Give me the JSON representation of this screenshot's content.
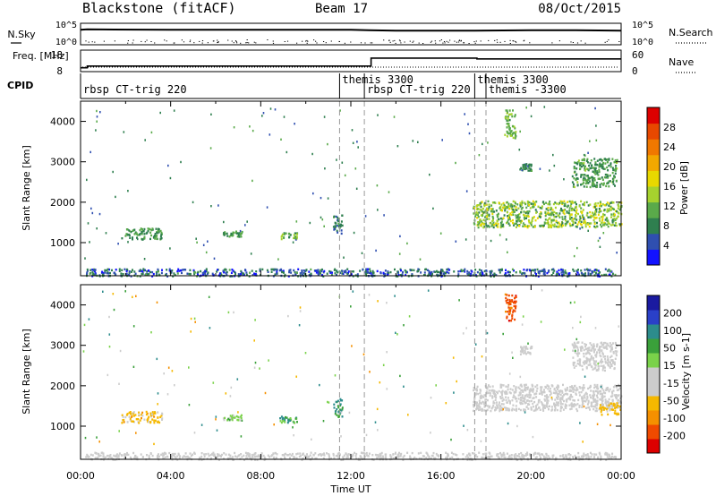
{
  "header": {
    "station": "Blackstone (fitACF)",
    "beam": "Beam 17",
    "date": "08/Oct/2015"
  },
  "chart_data": [
    {
      "type": "line",
      "panel": "noise",
      "left_label": "N.Sky",
      "right_label": "N.Search",
      "left_ticks": [
        "10^5",
        "10^0"
      ],
      "right_ticks": [
        "10^5",
        "10^0"
      ],
      "x_unit": "hours UT",
      "series": [
        {
          "name": "N.Sky",
          "x": [
            0.0,
            0.3,
            4.0,
            8.0,
            12.0,
            12.8,
            14.0,
            17.5,
            20.0,
            22.0,
            24.0
          ],
          "log10_value": [
            3.8,
            3.9,
            3.8,
            3.8,
            3.8,
            3.7,
            3.6,
            3.6,
            3.7,
            3.7,
            3.6
          ]
        }
      ]
    },
    {
      "type": "line",
      "panel": "frequency",
      "left_label": "Freq. [MHz]",
      "right_label": "Nave",
      "left_ticks": [
        18,
        8
      ],
      "right_ticks": [
        60,
        0
      ],
      "series": [
        {
          "name": "Freq. [MHz]",
          "x": [
            0.0,
            0.3,
            0.3,
            12.9,
            12.9,
            17.6,
            17.6,
            24.0
          ],
          "y": [
            9.8,
            9.8,
            10.6,
            10.6,
            14.3,
            14.3,
            13.9,
            13.9
          ]
        }
      ]
    },
    {
      "type": "table",
      "panel": "cpid",
      "label": "CPID",
      "segments": [
        {
          "start": 0.0,
          "end": 11.5,
          "name": "rbsp CT-trig 220",
          "row": 1
        },
        {
          "start": 11.5,
          "end": 12.6,
          "name": "themis 3300",
          "row": 0
        },
        {
          "start": 12.6,
          "end": 17.5,
          "name": "rbsp CT-trig 220",
          "row": 1
        },
        {
          "start": 17.5,
          "end": 18.0,
          "name": "themis 3300",
          "row": 0
        },
        {
          "start": 18.0,
          "end": 24.0,
          "name": "themis -3300",
          "row": 1
        }
      ]
    },
    {
      "type": "heatmap",
      "panel": "power",
      "ylabel": "Slant Range [km]",
      "yticks": [
        1000,
        2000,
        3000,
        4000
      ],
      "ylim": [
        180,
        4500
      ],
      "xlim": [
        0,
        24
      ],
      "colorbar": {
        "label": "Power [dB]",
        "ticks": [
          4,
          8,
          12,
          16,
          20,
          24,
          28
        ],
        "range": [
          0,
          32
        ],
        "colors": [
          "#1212ff",
          "#2f4fb0",
          "#2f7f4f",
          "#5aaa4a",
          "#a6d22e",
          "#e8d800",
          "#f2a800",
          "#f07800",
          "#e84800",
          "#dd0000"
        ]
      },
      "clusters": [
        {
          "x": [
            0.2,
            23.8
          ],
          "r": [
            190,
            370
          ],
          "value": 6,
          "spread": 4
        },
        {
          "x": [
            1.8,
            3.6
          ],
          "r": [
            1100,
            1380
          ],
          "value": 9,
          "spread": 3
        },
        {
          "x": [
            6.3,
            7.2
          ],
          "r": [
            1170,
            1300
          ],
          "value": 10,
          "spread": 3
        },
        {
          "x": [
            8.8,
            9.6
          ],
          "r": [
            1100,
            1260
          ],
          "value": 10,
          "spread": 4
        },
        {
          "x": [
            11.2,
            11.6
          ],
          "r": [
            1250,
            1700
          ],
          "value": 7,
          "spread": 3
        },
        {
          "x": [
            17.4,
            24.0
          ],
          "r": [
            1400,
            2050
          ],
          "value": 13,
          "spread": 5
        },
        {
          "x": [
            21.8,
            23.8
          ],
          "r": [
            2400,
            3100
          ],
          "value": 10,
          "spread": 3
        },
        {
          "x": [
            18.8,
            19.3
          ],
          "r": [
            3600,
            4300
          ],
          "value": 12,
          "spread": 3
        },
        {
          "x": [
            19.5,
            20.0
          ],
          "r": [
            2800,
            3000
          ],
          "value": 8,
          "spread": 2
        }
      ]
    },
    {
      "type": "heatmap",
      "panel": "velocity",
      "ylabel": "Slant Range [km]",
      "xlabel": "Time UT",
      "xticks": [
        "00:00",
        "04:00",
        "08:00",
        "12:00",
        "16:00",
        "20:00",
        "00:00"
      ],
      "yticks": [
        1000,
        2000,
        3000,
        4000
      ],
      "ylim": [
        180,
        4500
      ],
      "xlim": [
        0,
        24
      ],
      "colorbar": {
        "label": "Velocity [m s-1]",
        "ticks": [
          "200",
          "100",
          "50",
          "15",
          "-15",
          "-50",
          "-100",
          "-200"
        ],
        "range": [
          -250,
          250
        ],
        "colors": [
          "#dd0000",
          "#f04a00",
          "#f59000",
          "#f5b800",
          "#cccccc",
          "#cccccc",
          "#7ad24a",
          "#3aa03a",
          "#2c8c8c",
          "#2a40c8",
          "#1a1aa0"
        ]
      },
      "clusters": [
        {
          "x": [
            0.2,
            23.8
          ],
          "r": [
            190,
            370
          ],
          "value": -25,
          "spread": 35
        },
        {
          "x": [
            1.8,
            3.6
          ],
          "r": [
            1100,
            1380
          ],
          "value": -80,
          "spread": 40
        },
        {
          "x": [
            6.3,
            7.2
          ],
          "r": [
            1170,
            1300
          ],
          "value": 40,
          "spread": 30
        },
        {
          "x": [
            8.8,
            9.6
          ],
          "r": [
            1100,
            1260
          ],
          "value": 90,
          "spread": 60
        },
        {
          "x": [
            11.2,
            11.6
          ],
          "r": [
            1250,
            1700
          ],
          "value": 110,
          "spread": 50
        },
        {
          "x": [
            17.4,
            24.0
          ],
          "r": [
            1400,
            2050
          ],
          "value": 0,
          "spread": 8
        },
        {
          "x": [
            23.0,
            24.0
          ],
          "r": [
            1300,
            1600
          ],
          "value": -80,
          "spread": 20
        },
        {
          "x": [
            21.8,
            23.8
          ],
          "r": [
            2400,
            3100
          ],
          "value": 0,
          "spread": 6
        },
        {
          "x": [
            18.8,
            19.3
          ],
          "r": [
            3600,
            4300
          ],
          "value": -180,
          "spread": 30
        },
        {
          "x": [
            19.5,
            20.0
          ],
          "r": [
            2800,
            3000
          ],
          "value": -40,
          "spread": 20
        }
      ]
    }
  ]
}
